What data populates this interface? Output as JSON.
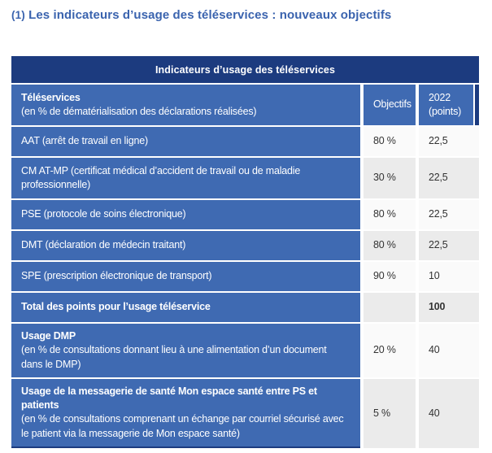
{
  "page": {
    "title": {
      "prefix": "(1)",
      "text": "Les indicateurs d’usage des téléservices : nouveaux objectifs"
    }
  },
  "table": {
    "caption": "Indicateurs d’usage des téléservices",
    "colors": {
      "header_navy": "#1c3b7f",
      "cell_blue": "#3f6ab2",
      "value_cell_light": "#fafafa",
      "value_cell_alt": "#ebebeb",
      "title_blue": "#3a63ae"
    },
    "header": {
      "col1_title": "Téléservices",
      "col1_subtitle": "(en % de dématérialisation des déclarations réalisées)",
      "col2": "Objectifs",
      "col3_line1": "2022",
      "col3_line2": "(points)"
    },
    "rows": [
      {
        "label": "AAT (arrêt de travail en ligne)",
        "objectif": "80 %",
        "points": "22,5"
      },
      {
        "label": "CM AT-MP (certificat médical d’accident de travail ou de maladie professionnelle)",
        "objectif": "30 %",
        "points": "22,5"
      },
      {
        "label": "PSE (protocole de soins électronique)",
        "objectif": "80 %",
        "points": "22,5"
      },
      {
        "label": "DMT (déclaration de médecin traitant)",
        "objectif": "80 %",
        "points": "22,5"
      },
      {
        "label": "SPE (prescription électronique de transport)",
        "objectif": "90 %",
        "points": "10"
      },
      {
        "label": "Total des points pour l’usage téléservice",
        "objectif": "",
        "points": "100"
      },
      {
        "title": "Usage DMP",
        "label": "(en % de consultations donnant lieu à une alimentation d’un document dans le DMP)",
        "objectif": "20 %",
        "points": "40"
      },
      {
        "title": "Usage de la messagerie de santé Mon espace santé entre PS et patients",
        "label": "(en % de consultations comprenant un échange par courriel sécurisé avec le patient via la messagerie de Mon espace santé)",
        "objectif": "5 %",
        "points": "40"
      }
    ]
  }
}
